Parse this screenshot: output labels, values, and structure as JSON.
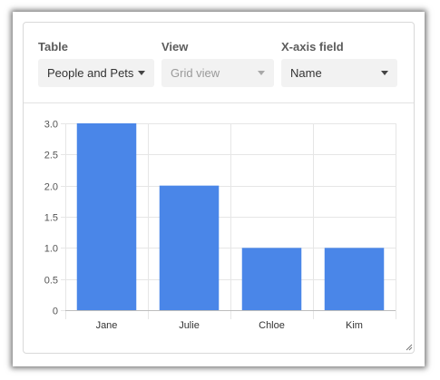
{
  "controls": {
    "table": {
      "label": "Table",
      "value": "People and Pets"
    },
    "view": {
      "label": "View",
      "value": "Grid view"
    },
    "xaxis": {
      "label": "X-axis field",
      "value": "Name"
    }
  },
  "colors": {
    "bar": "#4a86e8",
    "grid": "#e6e6e6",
    "axis_text": "#555555"
  },
  "chart_data": {
    "type": "bar",
    "categories": [
      "Jane",
      "Julie",
      "Chloe",
      "Kim"
    ],
    "values": [
      3,
      2,
      1,
      1
    ],
    "ylim": [
      0,
      3
    ],
    "yticks": [
      "0",
      "0.5",
      "1.0",
      "1.5",
      "2.0",
      "2.5",
      "3.0"
    ],
    "grid": true,
    "title": "",
    "xlabel": "",
    "ylabel": ""
  }
}
